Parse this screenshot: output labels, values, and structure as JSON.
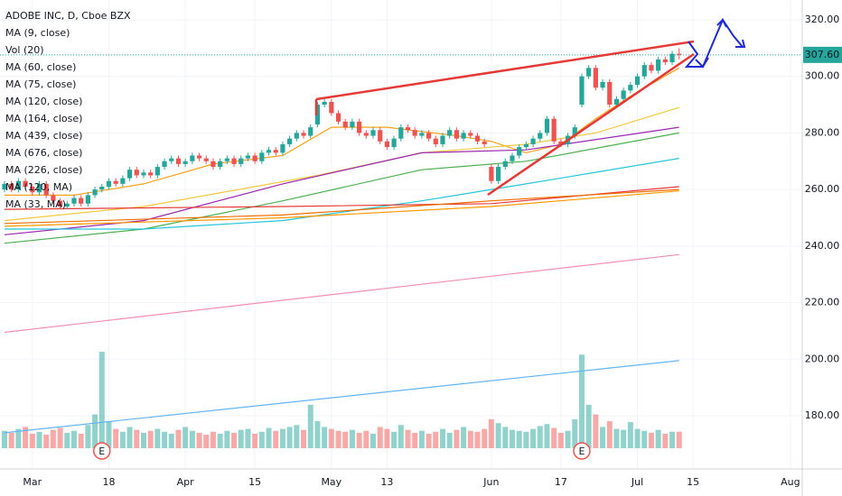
{
  "chart_data": {
    "type": "candlestick",
    "title": "ADOBE INC, D, Cboe BZX",
    "candles": {
      "up_color": "#26a69a",
      "down_color": "#ef5350",
      "open": [
        260,
        262,
        260,
        263,
        261,
        259,
        262,
        258,
        256,
        254,
        255,
        257,
        255,
        258,
        260,
        261,
        263,
        262,
        264,
        267,
        265,
        266,
        265,
        268,
        270,
        271,
        269,
        270,
        272,
        271,
        270,
        268,
        270,
        271,
        269,
        271,
        272,
        270,
        273,
        274,
        273,
        276,
        278,
        280,
        279,
        283,
        290,
        291,
        287,
        284,
        282,
        284,
        280,
        279,
        281,
        277,
        275,
        278,
        282,
        281,
        279,
        280,
        278,
        276,
        279,
        281,
        278,
        280,
        279,
        277,
        268,
        263,
        268,
        270,
        272,
        275,
        276,
        278,
        280,
        285,
        277,
        276,
        279,
        290,
        300,
        303,
        296,
        298,
        290,
        292,
        295,
        297,
        300,
        304,
        302,
        306,
        305,
        308
      ],
      "high": [
        263,
        263,
        264,
        264,
        262,
        263,
        263,
        259,
        257,
        256,
        258,
        258,
        259,
        261,
        262,
        264,
        264,
        265,
        268,
        268,
        267,
        267,
        269,
        271,
        272,
        272,
        271,
        273,
        273,
        272,
        271,
        271,
        272,
        272,
        272,
        273,
        273,
        274,
        275,
        275,
        277,
        279,
        281,
        281,
        283,
        291,
        292,
        292,
        288,
        285,
        285,
        285,
        281,
        282,
        282,
        278,
        279,
        283,
        283,
        282,
        281,
        281,
        279,
        280,
        282,
        282,
        281,
        281,
        280,
        278,
        269,
        269,
        271,
        273,
        276,
        277,
        279,
        281,
        286,
        286,
        278,
        280,
        283,
        301,
        304,
        304,
        299,
        299,
        293,
        296,
        298,
        301,
        305,
        305,
        307,
        307,
        309,
        310
      ],
      "low": [
        259,
        259,
        259,
        260,
        258,
        258,
        257,
        255,
        253,
        253,
        254,
        254,
        254,
        257,
        259,
        260,
        261,
        261,
        263,
        264,
        264,
        264,
        264,
        267,
        269,
        268,
        268,
        269,
        270,
        269,
        267,
        267,
        269,
        268,
        268,
        270,
        269,
        269,
        272,
        272,
        272,
        275,
        277,
        278,
        278,
        282,
        289,
        286,
        283,
        281,
        281,
        279,
        278,
        278,
        276,
        274,
        274,
        277,
        280,
        278,
        278,
        277,
        275,
        275,
        278,
        277,
        277,
        278,
        276,
        275,
        262,
        262,
        267,
        269,
        271,
        274,
        275,
        277,
        279,
        276,
        275,
        275,
        278,
        289,
        299,
        295,
        295,
        289,
        289,
        291,
        294,
        296,
        299,
        301,
        301,
        304,
        304,
        306
      ],
      "close": [
        262,
        260,
        263,
        261,
        259,
        262,
        258,
        256,
        254,
        255,
        257,
        255,
        258,
        260,
        261,
        263,
        262,
        264,
        267,
        265,
        266,
        265,
        268,
        270,
        271,
        269,
        270,
        272,
        271,
        270,
        268,
        270,
        271,
        269,
        271,
        272,
        270,
        273,
        274,
        273,
        276,
        278,
        280,
        279,
        282,
        290,
        291,
        287,
        284,
        282,
        284,
        280,
        279,
        281,
        277,
        275,
        278,
        282,
        281,
        279,
        280,
        278,
        276,
        279,
        281,
        278,
        280,
        279,
        277,
        276,
        263,
        268,
        270,
        272,
        275,
        276,
        278,
        280,
        285,
        277,
        276,
        279,
        282,
        300,
        303,
        296,
        298,
        290,
        292,
        295,
        297,
        300,
        304,
        302,
        306,
        305,
        308,
        307.6
      ]
    },
    "volume": {
      "name": "Vol (20)",
      "values": [
        18,
        16,
        20,
        22,
        15,
        17,
        14,
        19,
        21,
        16,
        18,
        15,
        24,
        35,
        100,
        28,
        20,
        17,
        22,
        19,
        16,
        18,
        20,
        17,
        15,
        19,
        22,
        18,
        16,
        14,
        17,
        15,
        18,
        16,
        19,
        20,
        15,
        17,
        21,
        18,
        20,
        22,
        24,
        19,
        45,
        28,
        22,
        20,
        18,
        17,
        19,
        16,
        18,
        15,
        22,
        20,
        17,
        24,
        19,
        16,
        18,
        15,
        17,
        20,
        16,
        19,
        22,
        18,
        17,
        20,
        30,
        26,
        22,
        19,
        18,
        17,
        20,
        23,
        25,
        21,
        16,
        18,
        30,
        97,
        45,
        35,
        22,
        28,
        20,
        19,
        27,
        20,
        18,
        16,
        19,
        15,
        17,
        17
      ]
    },
    "series": [
      {
        "name": "MA (9, close)",
        "color": "#f7a21b",
        "x": [
          0,
          10,
          20,
          30,
          40,
          47,
          55,
          65,
          70,
          75,
          80,
          85,
          90,
          97
        ],
        "values": [
          258,
          258,
          262,
          269,
          272,
          282,
          282,
          279,
          277,
          273,
          276,
          285,
          293,
          303
        ]
      },
      {
        "name": "MA (60, close)",
        "color": "#f5c842",
        "x": [
          0,
          20,
          45,
          60,
          75,
          85,
          97
        ],
        "values": [
          249,
          254,
          265,
          273,
          276,
          280,
          289
        ]
      },
      {
        "name": "MA (75, close)",
        "color": "#9c27b0",
        "x": [
          0,
          20,
          40,
          60,
          75,
          97
        ],
        "values": [
          244,
          249,
          262,
          273,
          274,
          282
        ]
      },
      {
        "name": "MA (120, close)",
        "color": "#4caf50",
        "x": [
          0,
          20,
          40,
          60,
          75,
          97
        ],
        "values": [
          241,
          246,
          256,
          267,
          270,
          280
        ]
      },
      {
        "name": "MA (164, close)",
        "color": "#26c6da",
        "x": [
          0,
          20,
          40,
          60,
          75,
          97
        ],
        "values": [
          246,
          246,
          249,
          256,
          262,
          271
        ]
      },
      {
        "name": "MA (439, close)",
        "color": "#f48fb1",
        "x": [
          0,
          97
        ],
        "values": [
          209.5,
          237
        ]
      },
      {
        "name": "MA (676, close)",
        "color": "#64b5f6",
        "x": [
          0,
          97
        ],
        "values": [
          174,
          199.5
        ]
      },
      {
        "name": "MA (226, close)",
        "color": "#e53935",
        "x": [
          0,
          40,
          70,
          97
        ],
        "values": [
          253,
          254,
          255,
          261
        ]
      },
      {
        "name": "MA (120, MA)",
        "color": "#ff9800",
        "x": [
          0,
          40,
          70,
          97
        ],
        "values": [
          247,
          250,
          254,
          259.5
        ]
      },
      {
        "name": "MA (33, MA)",
        "color": "#ef6c00",
        "x": [
          0,
          40,
          70,
          97
        ],
        "values": [
          248,
          251,
          256,
          260
        ]
      }
    ],
    "events": [
      {
        "x": 14,
        "label": "E"
      },
      {
        "x": 83,
        "label": "E"
      }
    ],
    "last_price": {
      "value": 307.6,
      "label": "307.60"
    },
    "xlim": [
      -0.65,
      114.7
    ],
    "xticks": [
      {
        "value": 4,
        "label": "Mar"
      },
      {
        "value": 15,
        "label": "18"
      },
      {
        "value": 26,
        "label": "Apr"
      },
      {
        "value": 36,
        "label": "15"
      },
      {
        "value": 47,
        "label": "May"
      },
      {
        "value": 55,
        "label": "13"
      },
      {
        "value": 70,
        "label": "Jun"
      },
      {
        "value": 80,
        "label": "17"
      },
      {
        "value": 91,
        "label": "Jul"
      },
      {
        "value": 99,
        "label": "15"
      },
      {
        "value": 113,
        "label": "Aug"
      }
    ],
    "ylim": [
      161.2,
      327.0
    ],
    "yticks": [
      {
        "value": 180,
        "label": "180.00"
      },
      {
        "value": 200,
        "label": "200.00"
      },
      {
        "value": 220,
        "label": "220.00"
      },
      {
        "value": 240,
        "label": "240.00"
      },
      {
        "value": 260,
        "label": "260.00"
      },
      {
        "value": 280,
        "label": "280.00"
      },
      {
        "value": 300,
        "label": "300.00"
      },
      {
        "value": 320,
        "label": "320.00"
      }
    ],
    "grid": true
  }
}
